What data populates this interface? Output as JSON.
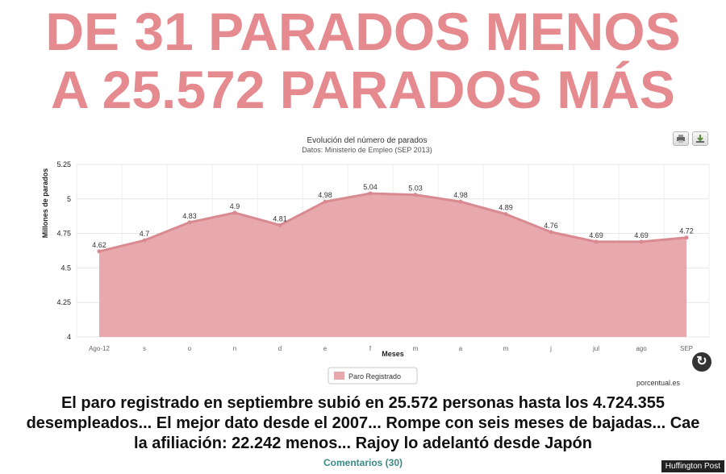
{
  "headline": {
    "line1": "DE 31 PARADOS MENOS",
    "line2": "A 25.572 PARADOS MÁS"
  },
  "caption": "El paro registrado en septiembre subió en 25.572 personas hasta los 4.724.355 desempleados... El mejor dato desde el 2007... Rompe con seis meses de bajadas... Cae la afiliación: 22.242 menos... Rajoy lo adelantó desde Japón",
  "comments_link": "Comentarios (30)",
  "credit": "Huffington Post",
  "source_credit": "porcentual.es",
  "colors": {
    "headline": "#e58a8f",
    "area_fill": "#e7a9ad",
    "line": "#d98a90"
  },
  "toolbar": {
    "print_icon": "print-icon",
    "download_icon": "download-icon",
    "refresh_icon": "refresh-icon"
  },
  "chart_data": {
    "type": "area",
    "title": "Evolución del número de parados",
    "subtitle": "Datos: Ministerio de Empleo (SEP 2013)",
    "xlabel": "Meses",
    "ylabel": "Millones de parados",
    "categories": [
      "Ago-12",
      "s",
      "o",
      "n",
      "d",
      "e",
      "f",
      "m",
      "a",
      "m",
      "j",
      "jul",
      "ago",
      "SEP"
    ],
    "series": [
      {
        "name": "Paro Registrado",
        "values": [
          4.62,
          4.7,
          4.83,
          4.9,
          4.81,
          4.98,
          5.04,
          5.03,
          4.98,
          4.89,
          4.76,
          4.69,
          4.69,
          4.72
        ]
      }
    ],
    "data_labels": [
      "4.62",
      "4.7",
      "4.83",
      "4.9",
      "4.81",
      "4.98",
      "5.04",
      "5.03",
      "4.98",
      "4.89",
      "4.76",
      "4.69",
      "4.69",
      "4.72"
    ],
    "y_ticks": [
      "4",
      "4.25",
      "4.5",
      "4.75",
      "5",
      "5.25"
    ],
    "ylim": [
      4,
      5.25
    ],
    "grid": true,
    "legend": "bottom-center"
  }
}
